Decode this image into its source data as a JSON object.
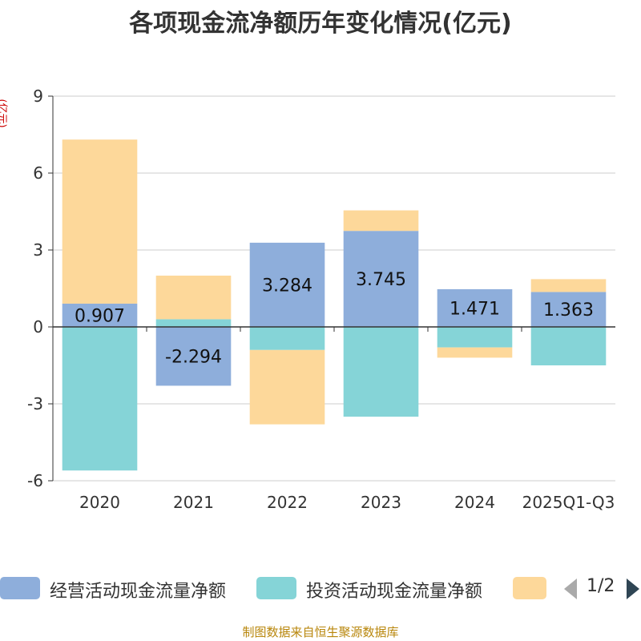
{
  "chart_data": {
    "type": "bar",
    "stacked": true,
    "title": "各项现金流净额历年变化情况(亿元)",
    "ylabel": "(亿元)",
    "ylim": [
      -6,
      9
    ],
    "yticks": [
      9,
      6,
      3,
      0,
      -3,
      -6
    ],
    "categories": [
      "2020",
      "2021",
      "2022",
      "2023",
      "2024",
      "2025Q1-Q3"
    ],
    "series": [
      {
        "name": "经营活动现金流量净额",
        "color": "#8eaedb",
        "values": [
          0.907,
          -2.294,
          3.284,
          3.745,
          1.471,
          1.363
        ],
        "labels": [
          "0.907",
          "-2.294",
          "3.284",
          "3.745",
          "1.471",
          "1.363"
        ]
      },
      {
        "name": "投资活动现金流量净额",
        "color": "#85d4d7",
        "values": [
          -5.6,
          0.3,
          -0.9,
          -3.5,
          -0.8,
          -1.5
        ]
      },
      {
        "name": "",
        "color": "#fdd89a",
        "values": [
          6.4,
          1.7,
          -2.9,
          0.8,
          -0.4,
          0.5
        ]
      }
    ],
    "legend_position": "bottom"
  },
  "legend": {
    "page_indicator": "1/2"
  },
  "footer": {
    "source": "制图数据来自恒生聚源数据库"
  }
}
